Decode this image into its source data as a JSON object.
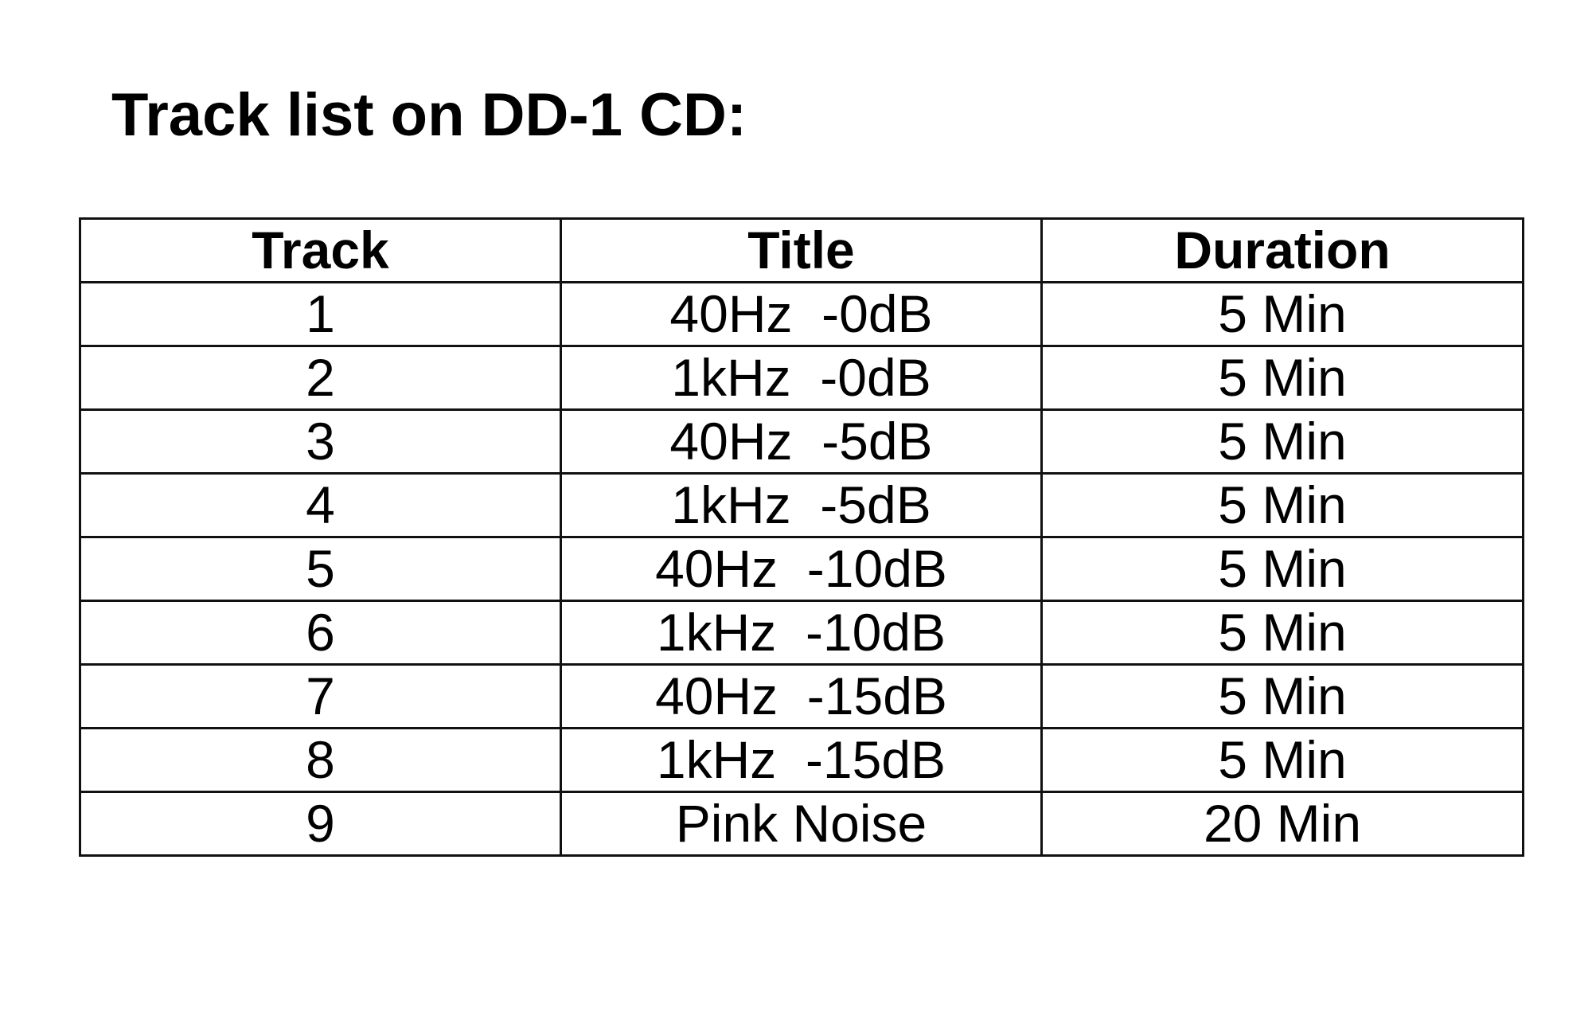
{
  "document": {
    "title": "Track list on DD-1 CD:",
    "table": {
      "headers": [
        "Track",
        "Title",
        "Duration"
      ],
      "rows": [
        [
          "1",
          "40Hz  -0dB",
          "5 Min"
        ],
        [
          "2",
          "1kHz  -0dB",
          "5 Min"
        ],
        [
          "3",
          "40Hz  -5dB",
          "5 Min"
        ],
        [
          "4",
          "1kHz  -5dB",
          "5 Min"
        ],
        [
          "5",
          "40Hz  -10dB",
          "5 Min"
        ],
        [
          "6",
          "1kHz  -10dB",
          "5 Min"
        ],
        [
          "7",
          "40Hz  -15dB",
          "5 Min"
        ],
        [
          "8",
          "1kHz  -15dB",
          "5 Min"
        ],
        [
          "9",
          "Pink Noise",
          "20 Min"
        ]
      ]
    }
  }
}
